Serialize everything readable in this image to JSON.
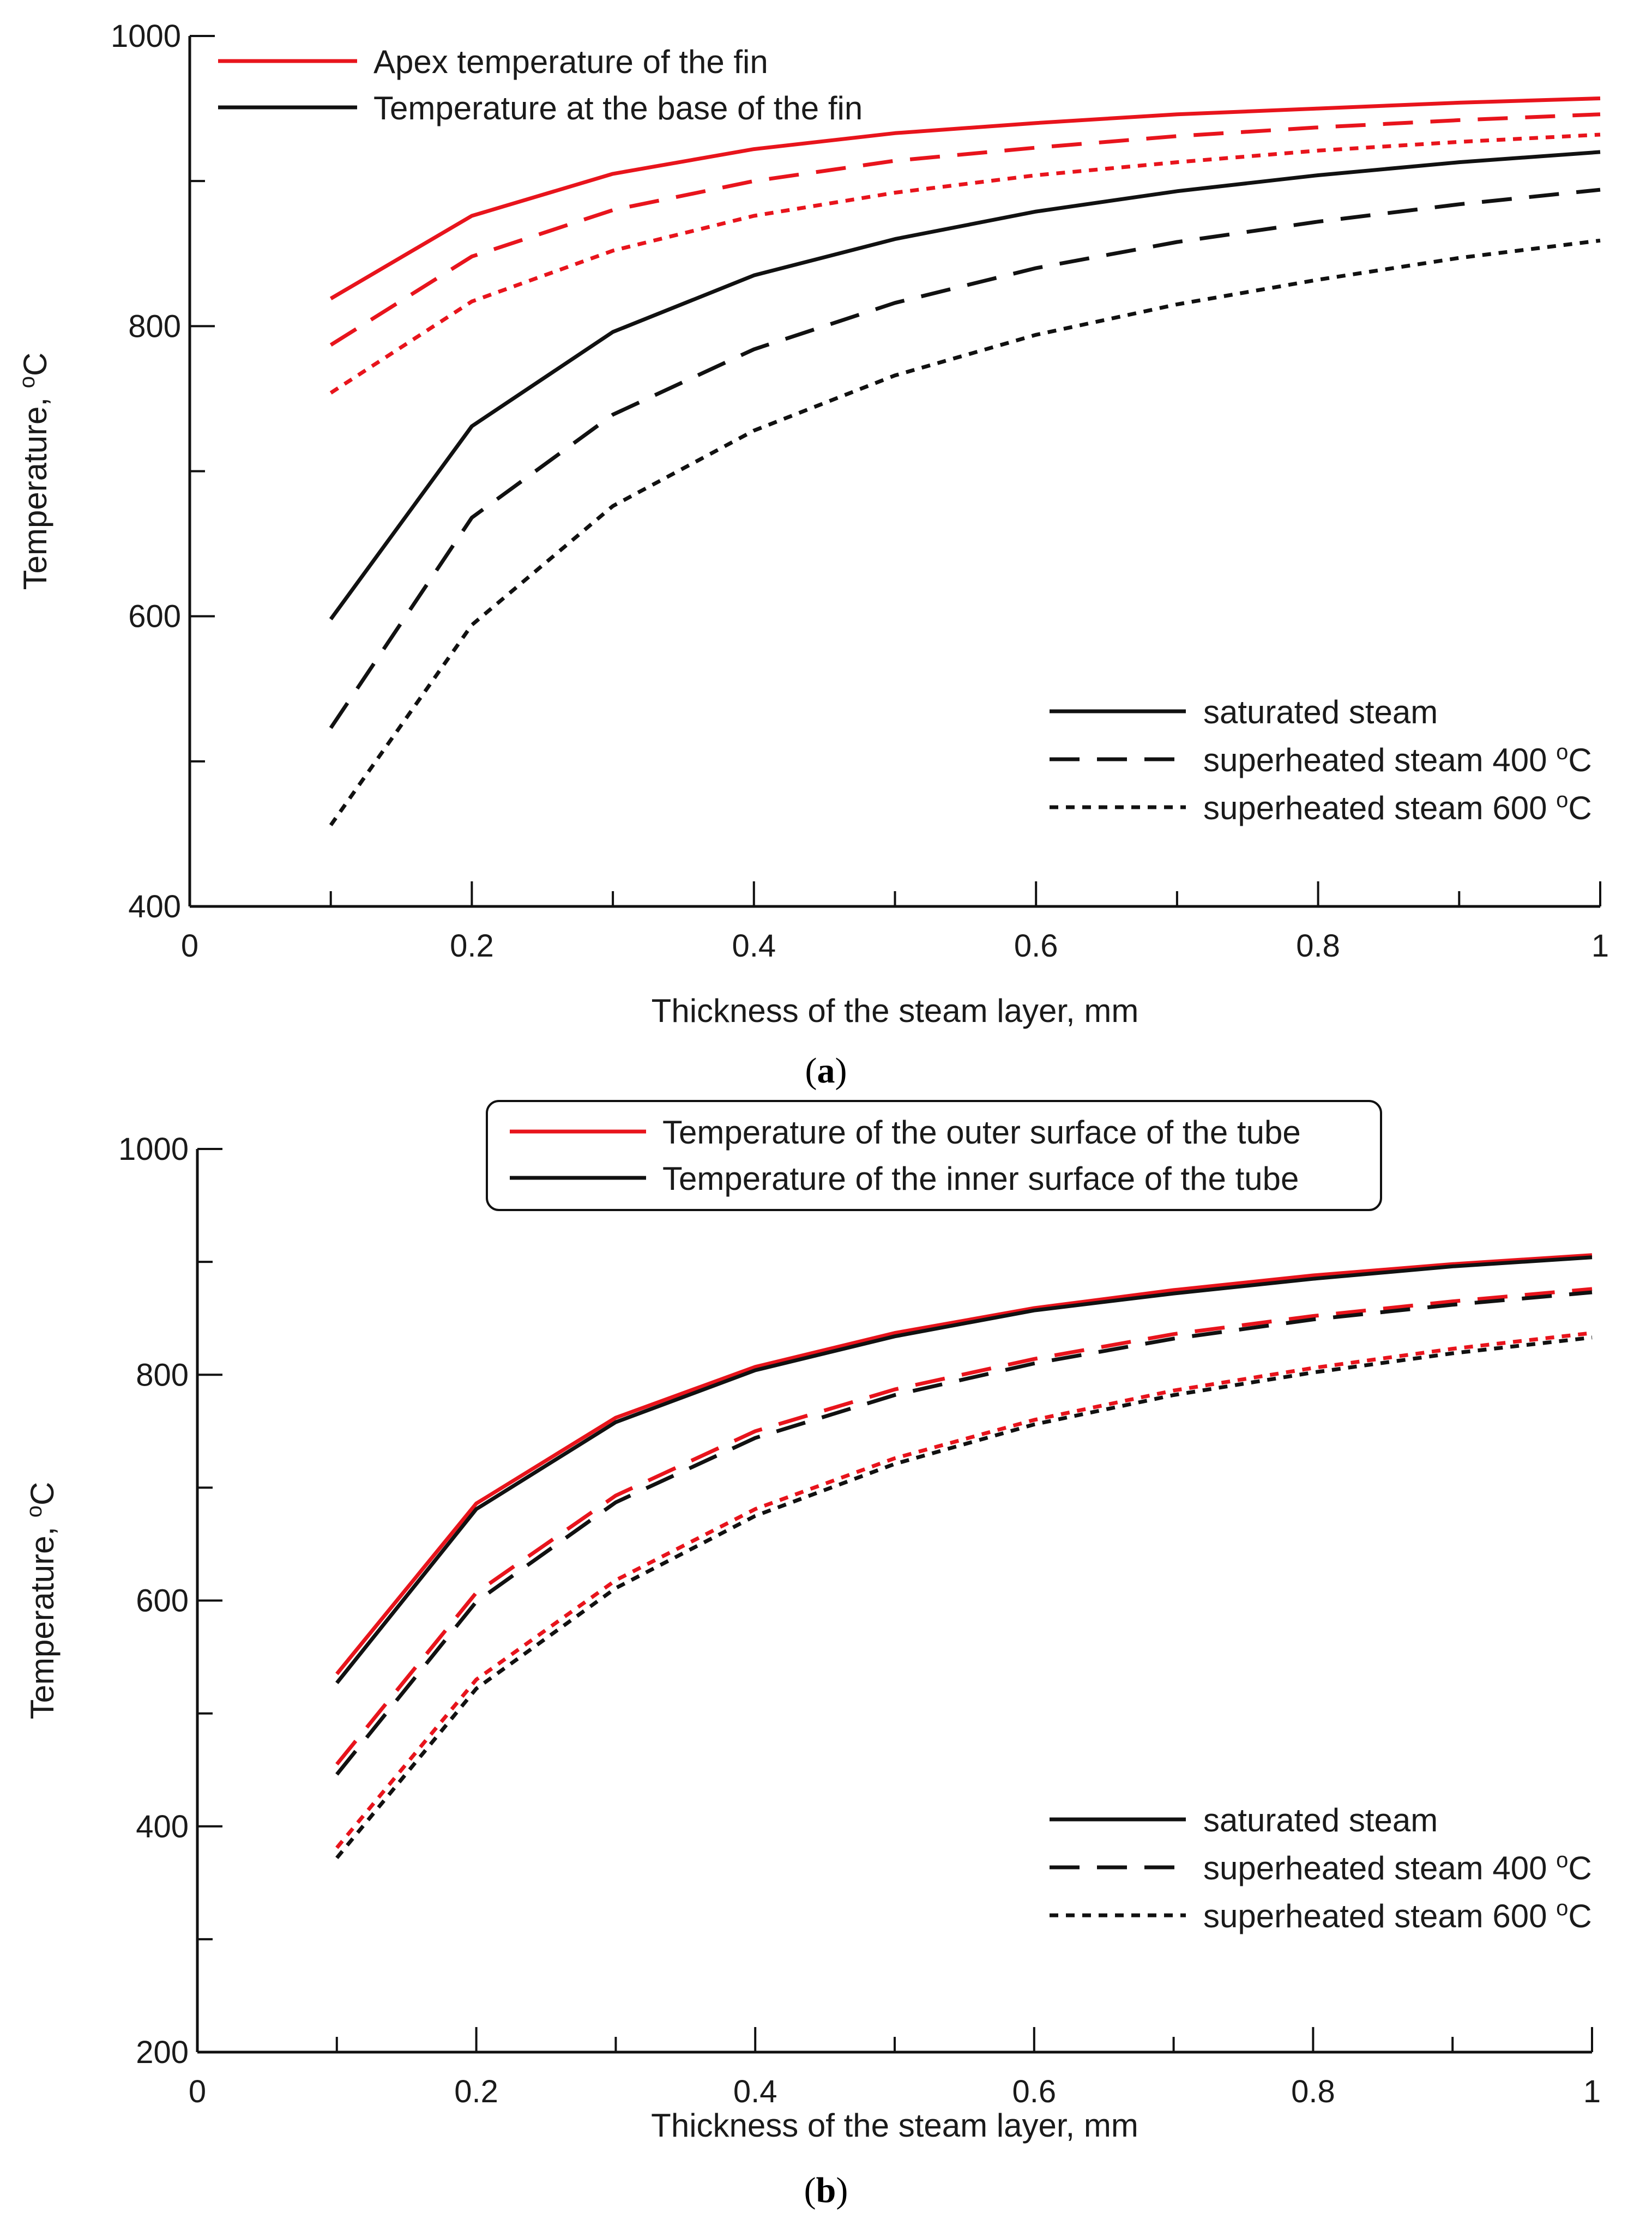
{
  "chart_data": [
    {
      "panel": "(a)",
      "panel_letter": "a",
      "type": "line",
      "xlabel": "Thickness of the steam layer, mm",
      "ylabel": "Temperature, ",
      "ylabel_sup": "o",
      "ylabel_unit": "C",
      "xlim": [
        0,
        1
      ],
      "ylim": [
        400,
        1000
      ],
      "x_ticks": [
        0,
        0.2,
        0.4,
        0.6,
        0.8,
        1
      ],
      "x_tick_labels": [
        "0",
        "0.2",
        "0.4",
        "0.6",
        "0.8",
        "1"
      ],
      "x_minor_step": 0.1,
      "y_ticks": [
        400,
        600,
        800,
        1000
      ],
      "y_tick_labels": [
        "400",
        "600",
        "800",
        "1000"
      ],
      "y_minor_step": 100,
      "x": [
        0.1,
        0.2,
        0.3,
        0.4,
        0.5,
        0.6,
        0.7,
        0.8,
        0.9,
        1.0
      ],
      "series": [
        {
          "name": "Apex temperature of the fin - saturated steam",
          "color": "#e8141c",
          "style": "solid",
          "values": [
            819,
            876,
            905,
            922,
            933,
            940,
            946,
            950,
            954,
            957
          ]
        },
        {
          "name": "Apex temperature of the fin - superheated steam 400 °C",
          "color": "#e8141c",
          "style": "dashed",
          "values": [
            787,
            848,
            880,
            900,
            914,
            923,
            931,
            937,
            942,
            946
          ]
        },
        {
          "name": "Apex temperature of the fin - superheated steam 600 °C",
          "color": "#e8141c",
          "style": "dotted",
          "values": [
            754,
            817,
            852,
            876,
            892,
            904,
            913,
            921,
            927,
            932
          ]
        },
        {
          "name": "Temperature at the base of the fin - saturated steam",
          "color": "#111111",
          "style": "solid",
          "values": [
            598,
            731,
            796,
            835,
            860,
            879,
            893,
            904,
            913,
            920
          ]
        },
        {
          "name": "Temperature at the base of the fin - superheated steam 400 °C",
          "color": "#111111",
          "style": "dashed",
          "values": [
            523,
            668,
            739,
            784,
            816,
            840,
            858,
            872,
            884,
            894
          ]
        },
        {
          "name": "Temperature at the base of the fin - superheated steam 600 °C",
          "color": "#111111",
          "style": "dotted",
          "values": [
            456,
            594,
            676,
            728,
            766,
            794,
            815,
            832,
            847,
            859
          ]
        }
      ],
      "legend_color": {
        "position": "top-left",
        "boxed": false,
        "entries": [
          {
            "label": "Apex temperature of the fin",
            "color": "#e8141c"
          },
          {
            "label": "Temperature at the base of the fin",
            "color": "#111111"
          }
        ]
      },
      "legend_style": {
        "position": "bottom-right",
        "entries": [
          {
            "label": "saturated steam",
            "style": "solid"
          },
          {
            "label": "superheated steam 400 ",
            "sup": "o",
            "unit": "C",
            "style": "dashed"
          },
          {
            "label": "superheated steam 600 ",
            "sup": "o",
            "unit": "C",
            "style": "dotted"
          }
        ]
      }
    },
    {
      "panel": "(b)",
      "panel_letter": "b",
      "type": "line",
      "xlabel": "Thickness of the steam layer, mm",
      "ylabel": "Temperature, ",
      "ylabel_sup": "o",
      "ylabel_unit": "C",
      "xlim": [
        0,
        1
      ],
      "ylim": [
        200,
        1000
      ],
      "x_ticks": [
        0,
        0.2,
        0.4,
        0.6,
        0.8,
        1
      ],
      "x_tick_labels": [
        "0",
        "0.2",
        "0.4",
        "0.6",
        "0.8",
        "1"
      ],
      "x_minor_step": 0.1,
      "y_ticks": [
        200,
        400,
        600,
        800,
        1000
      ],
      "y_tick_labels": [
        "200",
        "400",
        "600",
        "800",
        "1000"
      ],
      "y_minor_step": 100,
      "x": [
        0.1,
        0.2,
        0.3,
        0.4,
        0.5,
        0.6,
        0.7,
        0.8,
        0.9,
        1.0
      ],
      "series": [
        {
          "name": "Temperature of the outer surface of the tube - saturated steam",
          "color": "#e8141c",
          "style": "solid",
          "values": [
            535,
            686,
            762,
            807,
            837,
            859,
            875,
            888,
            898,
            906
          ]
        },
        {
          "name": "Temperature of the outer surface of the tube - superheated steam 400 °C",
          "color": "#e8141c",
          "style": "dashed",
          "values": [
            455,
            607,
            693,
            750,
            787,
            814,
            836,
            852,
            865,
            876
          ]
        },
        {
          "name": "Temperature of the outer surface of the tube - superheated steam 600 °C",
          "color": "#e8141c",
          "style": "dotted",
          "values": [
            381,
            530,
            618,
            681,
            726,
            760,
            786,
            806,
            823,
            837
          ]
        },
        {
          "name": "Temperature of the inner surface of the tube - saturated steam",
          "color": "#111111",
          "style": "solid",
          "values": [
            527,
            681,
            758,
            804,
            834,
            857,
            872,
            885,
            896,
            904
          ]
        },
        {
          "name": "Temperature of the inner surface of the tube - superheated steam 400 °C",
          "color": "#111111",
          "style": "dashed",
          "values": [
            446,
            599,
            687,
            744,
            782,
            810,
            832,
            849,
            862,
            873
          ]
        },
        {
          "name": "Temperature of the inner surface of the tube - superheated steam 600 °C",
          "color": "#111111",
          "style": "dotted",
          "values": [
            372,
            522,
            611,
            675,
            721,
            756,
            782,
            802,
            819,
            833
          ]
        }
      ],
      "legend_color": {
        "position": "top-center",
        "boxed": true,
        "entries": [
          {
            "label": "Temperature of the outer surface of the tube",
            "color": "#e8141c"
          },
          {
            "label": "Temperature of the inner surface of the tube",
            "color": "#111111"
          }
        ]
      },
      "legend_style": {
        "position": "bottom-right",
        "entries": [
          {
            "label": "saturated steam",
            "style": "solid"
          },
          {
            "label": "superheated steam 400 ",
            "sup": "o",
            "unit": "C",
            "style": "dashed"
          },
          {
            "label": "superheated steam 600 ",
            "sup": "o",
            "unit": "C",
            "style": "dotted"
          }
        ]
      }
    }
  ]
}
